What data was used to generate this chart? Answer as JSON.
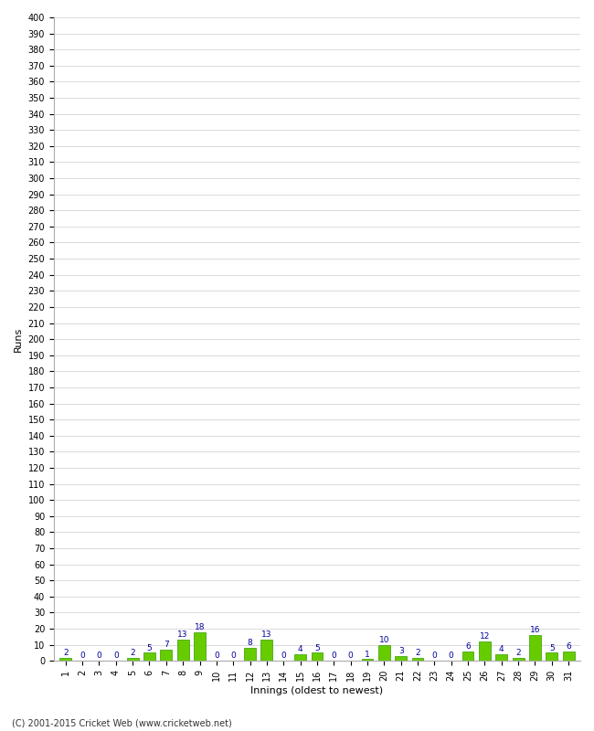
{
  "values": [
    2,
    0,
    0,
    0,
    2,
    5,
    7,
    13,
    18,
    0,
    0,
    8,
    13,
    0,
    4,
    5,
    0,
    0,
    1,
    10,
    3,
    2,
    0,
    0,
    6,
    12,
    4,
    2,
    16,
    5,
    6
  ],
  "n_innings": 31,
  "bar_color": "#66cc00",
  "bar_edge_color": "#339900",
  "label_color": "#000099",
  "xlabel": "Innings (oldest to newest)",
  "ylabel": "Runs",
  "ylim": [
    0,
    400
  ],
  "ytick_step": 10,
  "background_color": "#ffffff",
  "grid_color": "#cccccc",
  "footer": "(C) 2001-2015 Cricket Web (www.cricketweb.net)"
}
